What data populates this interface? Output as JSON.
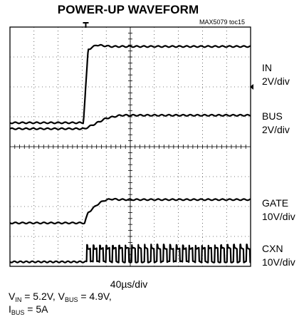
{
  "title": "POWER-UP WAVEFORM",
  "figure_tag": "MAX5079 toc15",
  "channels": [
    {
      "name": "IN",
      "scale": "2V/div"
    },
    {
      "name": "BUS",
      "scale": "2V/div"
    },
    {
      "name": "GATE",
      "scale": "10V/div"
    },
    {
      "name": "CXN",
      "scale": "10V/div"
    }
  ],
  "timebase": "40µs/div",
  "conditions": {
    "line1_a": "V",
    "line1_a_sub": "IN",
    "line1_b": " = 5.2V, V",
    "line1_b_sub": "BUS",
    "line1_c": " = 4.9V,",
    "line2_a": "I",
    "line2_a_sub": "BUS",
    "line2_b": " = 5A"
  },
  "chart_data": {
    "type": "line",
    "title": "POWER-UP WAVEFORM",
    "xlabel": "40µs/div",
    "x_divisions": 10,
    "y_divisions": 8,
    "grid": true,
    "series": [
      {
        "name": "IN",
        "scale": "2V/div",
        "x": [
          0,
          3.05,
          3.25,
          3.6,
          4.2,
          10
        ],
        "y": [
          0,
          0,
          2.45,
          2.6,
          2.55,
          2.55
        ]
      },
      {
        "name": "BUS",
        "scale": "2V/div",
        "x": [
          0,
          3.1,
          3.5,
          4.0,
          4.6,
          10
        ],
        "y": [
          0,
          0,
          0.15,
          0.35,
          0.45,
          0.45
        ]
      },
      {
        "name": "GATE",
        "scale": "10V/div",
        "x": [
          0,
          3.1,
          3.25,
          3.4,
          3.6,
          3.9,
          4.2,
          4.6,
          10
        ],
        "y": [
          0,
          0,
          0.35,
          0.45,
          0.6,
          0.75,
          0.8,
          0.78,
          0.78
        ]
      },
      {
        "name": "CXN",
        "scale": "10V/div",
        "type": "pulse_train",
        "start_div": 3.2,
        "period_div": 0.265,
        "high": 0.45,
        "low": 0
      }
    ]
  }
}
